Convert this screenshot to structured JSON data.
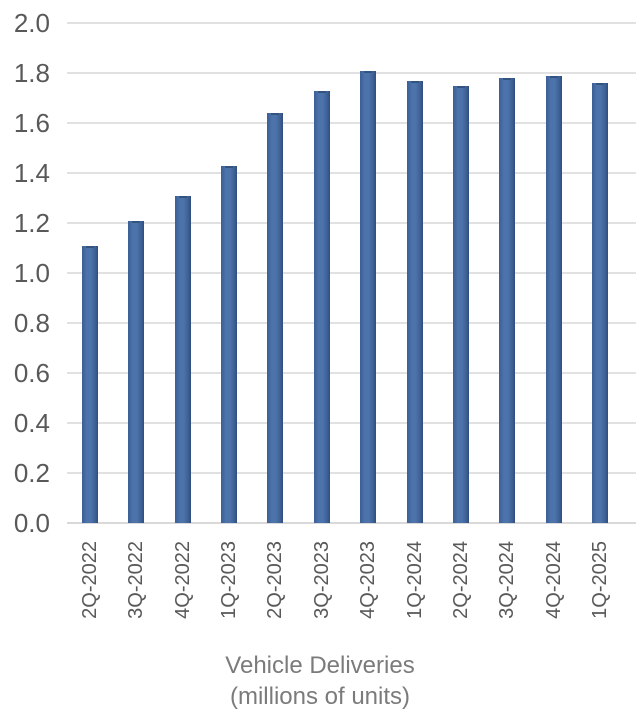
{
  "chart_data": {
    "type": "bar",
    "title": "Vehicle Deliveries",
    "subtitle": "(millions of units)",
    "categories": [
      "2Q-2022",
      "3Q-2022",
      "4Q-2022",
      "1Q-2023",
      "2Q-2023",
      "3Q-2023",
      "4Q-2023",
      "1Q-2024",
      "2Q-2024",
      "3Q-2024",
      "4Q-2024",
      "1Q-2025"
    ],
    "values": [
      1.11,
      1.21,
      1.31,
      1.43,
      1.64,
      1.73,
      1.81,
      1.77,
      1.75,
      1.78,
      1.79,
      1.76
    ],
    "xlabel": "",
    "ylabel": "",
    "ylim": [
      0.0,
      2.0
    ],
    "ytick_step": 0.2,
    "ytick_labels": [
      "2.0",
      "1.8",
      "1.6",
      "1.4",
      "1.2",
      "1.0",
      "0.8",
      "0.6",
      "0.4",
      "0.2",
      "0.0"
    ],
    "grid": true,
    "legend": "none",
    "bar_color": "#4d73ab",
    "bar_edge_color": "#2f4e7d",
    "gridline_color": "#e1e1e1",
    "tick_label_color": "#595959",
    "title_color": "#7b7b7b"
  }
}
